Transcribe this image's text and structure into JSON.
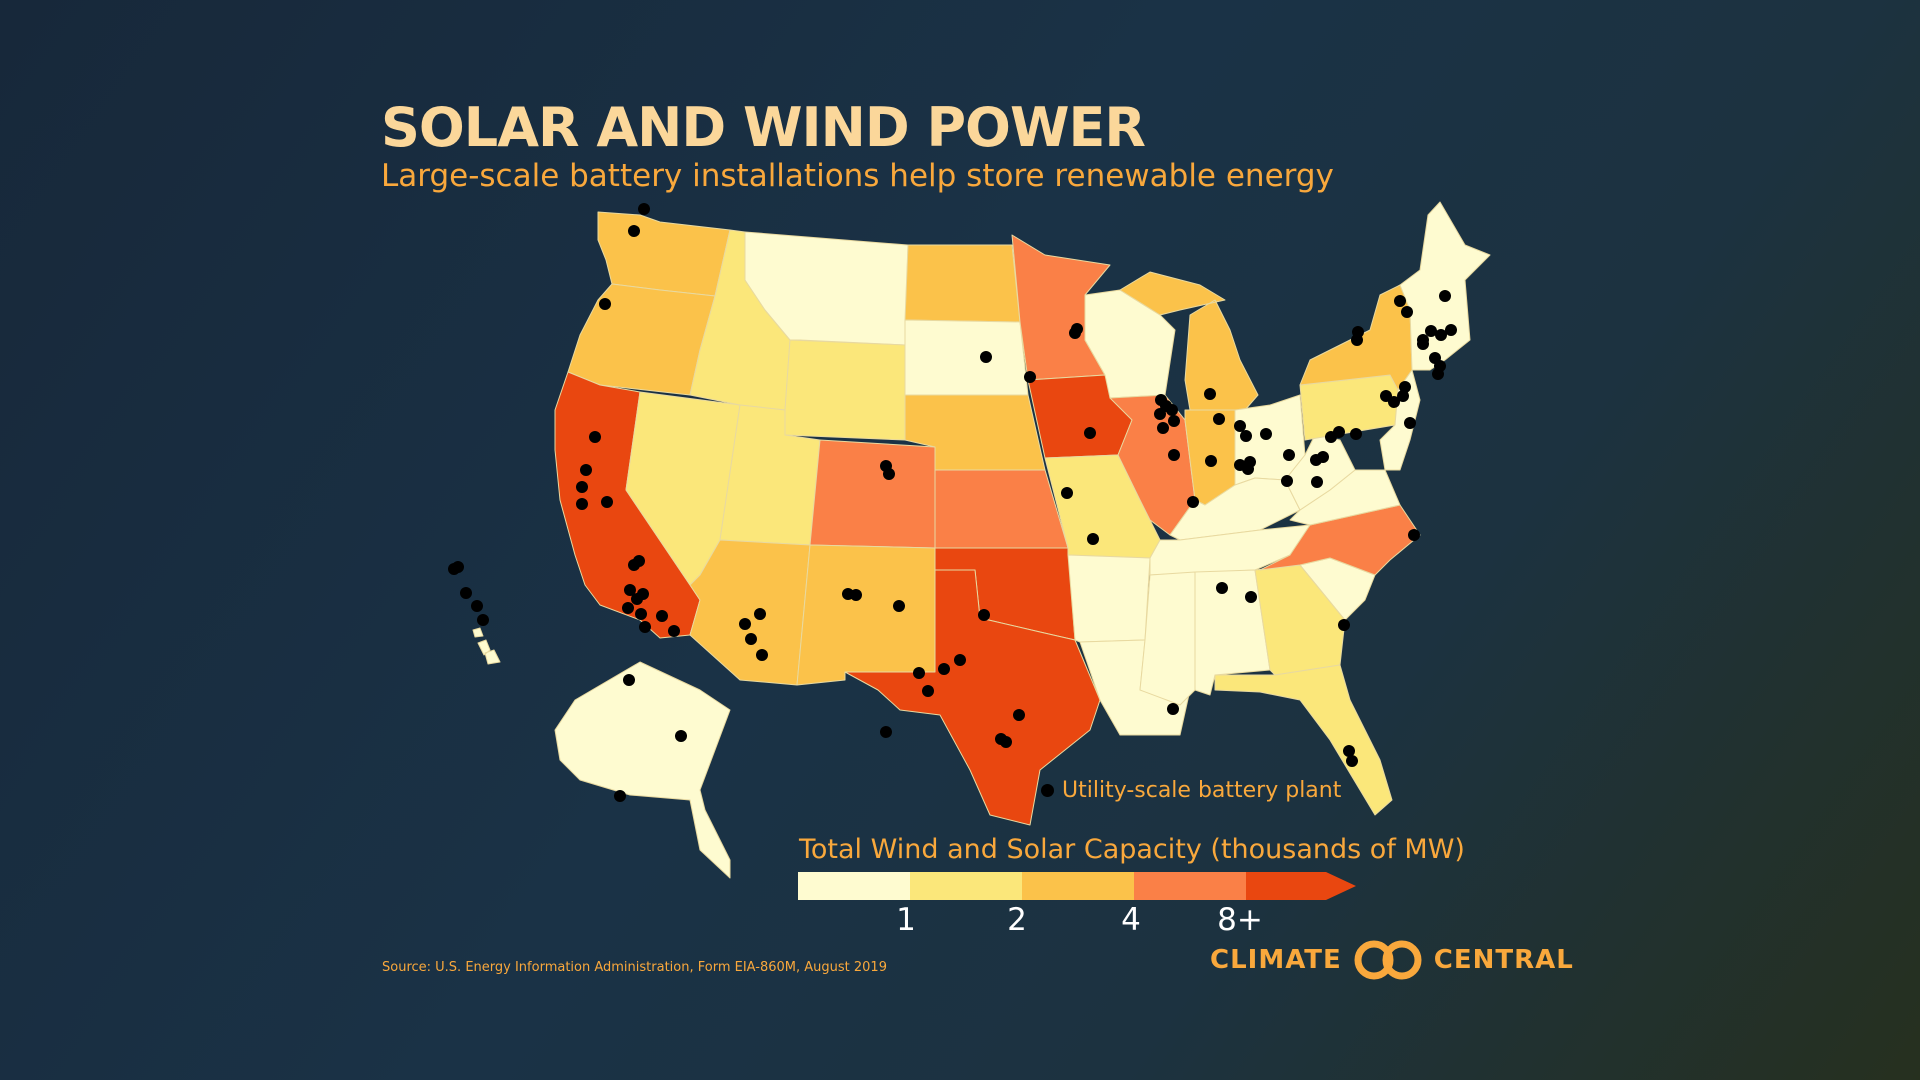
{
  "header": {
    "title": "SOLAR AND WIND POWER",
    "subtitle": "Large-scale battery installations help store renewable energy"
  },
  "legend": {
    "title": "Total Wind and Solar Capacity (thousands of MW)",
    "ticks": [
      "1",
      "2",
      "4",
      "8+"
    ],
    "colors": [
      "#fefbd0",
      "#fbe77a",
      "#fbc24a",
      "#fa8047",
      "#e94710"
    ]
  },
  "plant_key": {
    "label": "Utility-scale battery plant",
    "color": "#000000"
  },
  "source": "Source: U.S. Energy Information Administration, Form EIA-860M, August 2019",
  "logo": {
    "left": "CLIMATE",
    "right": "CENTRAL"
  },
  "map": {
    "background_land": "#fefbd0",
    "states": [
      {
        "name": "Washington",
        "class": 3
      },
      {
        "name": "Oregon",
        "class": 3
      },
      {
        "name": "California",
        "class": 5
      },
      {
        "name": "Nevada",
        "class": 2
      },
      {
        "name": "Idaho",
        "class": 2
      },
      {
        "name": "Montana",
        "class": 1
      },
      {
        "name": "Wyoming",
        "class": 2
      },
      {
        "name": "Utah",
        "class": 2
      },
      {
        "name": "Arizona",
        "class": 3
      },
      {
        "name": "Colorado",
        "class": 4
      },
      {
        "name": "New Mexico",
        "class": 3
      },
      {
        "name": "North Dakota",
        "class": 3
      },
      {
        "name": "South Dakota",
        "class": 1
      },
      {
        "name": "Nebraska",
        "class": 3
      },
      {
        "name": "Kansas",
        "class": 4
      },
      {
        "name": "Oklahoma",
        "class": 5
      },
      {
        "name": "Texas",
        "class": 5
      },
      {
        "name": "Minnesota",
        "class": 4
      },
      {
        "name": "Iowa",
        "class": 5
      },
      {
        "name": "Missouri",
        "class": 2
      },
      {
        "name": "Arkansas",
        "class": 1
      },
      {
        "name": "Louisiana",
        "class": 1
      },
      {
        "name": "Wisconsin",
        "class": 1
      },
      {
        "name": "Illinois",
        "class": 4
      },
      {
        "name": "Michigan",
        "class": 3
      },
      {
        "name": "Indiana",
        "class": 3
      },
      {
        "name": "Ohio",
        "class": 1
      },
      {
        "name": "Kentucky",
        "class": 1
      },
      {
        "name": "Tennessee",
        "class": 1
      },
      {
        "name": "Mississippi",
        "class": 1
      },
      {
        "name": "Alabama",
        "class": 1
      },
      {
        "name": "Georgia",
        "class": 2
      },
      {
        "name": "Florida",
        "class": 2
      },
      {
        "name": "South Carolina",
        "class": 1
      },
      {
        "name": "North Carolina",
        "class": 4
      },
      {
        "name": "Virginia",
        "class": 1
      },
      {
        "name": "West Virginia",
        "class": 1
      },
      {
        "name": "Pennsylvania",
        "class": 2
      },
      {
        "name": "New York",
        "class": 3
      },
      {
        "name": "New England",
        "class": 1
      },
      {
        "name": "Alaska",
        "class": 1
      },
      {
        "name": "Hawaii",
        "class": 1
      }
    ],
    "plant_count": 90
  }
}
